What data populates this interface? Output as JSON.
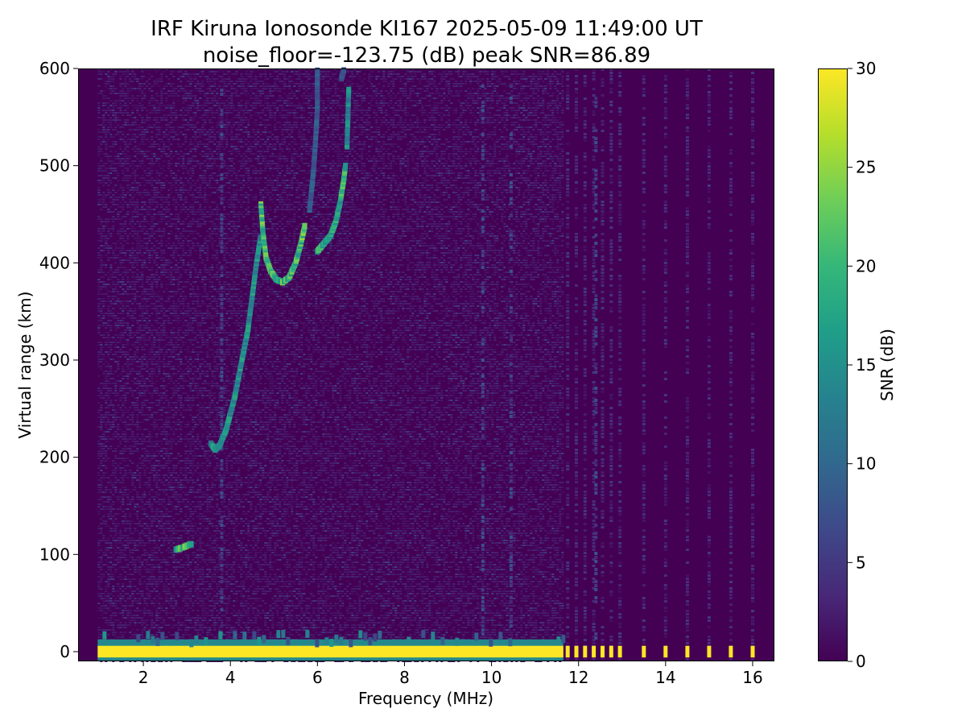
{
  "chart_data": {
    "type": "heatmap",
    "title": "IRF Kiruna Ionosonde KI167 2025-05-09 11:49:00  UT",
    "subtitle": "noise_floor=-123.75 (dB) peak SNR=86.89",
    "xlabel": "Frequency (MHz)",
    "ylabel": "Virtual range (km)",
    "xlim": [
      0.5,
      16.5
    ],
    "ylim": [
      -10,
      600
    ],
    "xticks": [
      "2",
      "4",
      "6",
      "8",
      "10",
      "12",
      "14",
      "16"
    ],
    "yticks": [
      "0",
      "100",
      "200",
      "300",
      "400",
      "500",
      "600"
    ],
    "colorbar": {
      "label": "SNR (dB)",
      "range": [
        0,
        30
      ],
      "ticks": [
        "0",
        "5",
        "10",
        "15",
        "20",
        "25",
        "30"
      ],
      "colormap": "viridis",
      "colors": [
        "#440154",
        "#482878",
        "#3e4989",
        "#31688e",
        "#26828e",
        "#1f9e89",
        "#35b779",
        "#6ece58",
        "#b5de2b",
        "#fde725"
      ]
    },
    "sweep": {
      "continuous_range_mhz": [
        0.95,
        11.65
      ],
      "discrete_channels_mhz": [
        11.75,
        11.95,
        12.15,
        12.35,
        12.55,
        12.75,
        12.95,
        13.5,
        14.0,
        14.5,
        15.0,
        15.5,
        16.0
      ]
    },
    "ground_band": {
      "range_km": [
        -6,
        6
      ],
      "snr_db": 30
    },
    "echo_traces": [
      {
        "points": [
          [
            2.75,
            105
          ],
          [
            2.9,
            107
          ],
          [
            3.05,
            110
          ],
          [
            3.15,
            111
          ]
        ],
        "snr_db": 21
      },
      {
        "points": [
          [
            3.55,
            214
          ],
          [
            3.65,
            208
          ],
          [
            3.75,
            212
          ],
          [
            3.9,
            228
          ],
          [
            4.0,
            245
          ],
          [
            4.1,
            262
          ],
          [
            4.2,
            285
          ],
          [
            4.3,
            308
          ],
          [
            4.4,
            330
          ],
          [
            4.5,
            365
          ],
          [
            4.6,
            400
          ],
          [
            4.7,
            428
          ]
        ],
        "snr_db": 16
      },
      {
        "points": [
          [
            4.7,
            460
          ],
          [
            4.75,
            430
          ],
          [
            4.82,
            405
          ],
          [
            4.92,
            392
          ],
          [
            5.05,
            383
          ],
          [
            5.2,
            380
          ],
          [
            5.35,
            385
          ],
          [
            5.5,
            400
          ],
          [
            5.62,
            420
          ],
          [
            5.72,
            440
          ]
        ],
        "snr_db": 22
      },
      {
        "points": [
          [
            6.0,
            412
          ],
          [
            6.15,
            420
          ],
          [
            6.3,
            428
          ],
          [
            6.42,
            442
          ],
          [
            6.52,
            462
          ],
          [
            6.6,
            484
          ],
          [
            6.65,
            502
          ]
        ],
        "snr_db": 20
      },
      {
        "points": [
          [
            6.68,
            520
          ],
          [
            6.7,
            550
          ],
          [
            6.72,
            580
          ]
        ],
        "snr_db": 15
      },
      {
        "points": [
          [
            5.82,
            455
          ],
          [
            5.9,
            490
          ],
          [
            5.95,
            520
          ],
          [
            6.0,
            560
          ],
          [
            6.0,
            600
          ]
        ],
        "snr_db": 9
      },
      {
        "points": [
          [
            6.55,
            590
          ],
          [
            6.62,
            600
          ]
        ],
        "snr_db": 8
      }
    ],
    "noise_columns_mhz": [
      3.8,
      9.8,
      10.45,
      12.4
    ]
  }
}
